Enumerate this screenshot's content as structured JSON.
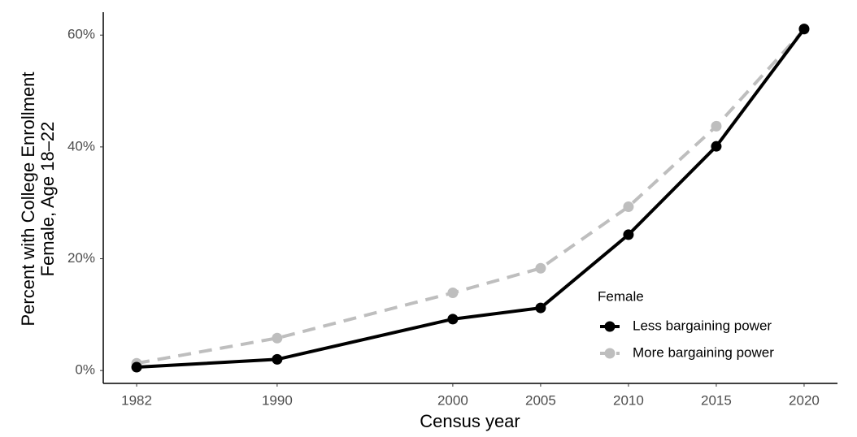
{
  "chart_data": {
    "type": "line",
    "x_label": "Census year",
    "y_label": [
      "Percent with College Enrollment",
      "Female, Age 18–22"
    ],
    "x": [
      1982,
      1990,
      2000,
      2005,
      2010,
      2015,
      2020
    ],
    "series": [
      {
        "name": "Less bargaining power",
        "color": "#000000",
        "line_style": "solid",
        "values": [
          0.6,
          2.0,
          9.2,
          11.2,
          24.3,
          40.1,
          61.1
        ]
      },
      {
        "name": "More bargaining power",
        "color": "#bebebe",
        "line_style": "dashed",
        "values": [
          1.3,
          5.8,
          13.9,
          18.3,
          29.3,
          43.7,
          61.0
        ]
      }
    ],
    "legend_title": "Female",
    "xlim": [
      1980.1,
      2021.9
    ],
    "xticks": [
      1982,
      1990,
      2000,
      2005,
      2010,
      2015,
      2020
    ],
    "ylim": [
      -2.3,
      64.1
    ],
    "yticks": [
      {
        "value": 0,
        "label": "0%"
      },
      {
        "value": 20,
        "label": "20%"
      },
      {
        "value": 40,
        "label": "40%"
      },
      {
        "value": 60,
        "label": "60%"
      }
    ],
    "grid": false
  }
}
